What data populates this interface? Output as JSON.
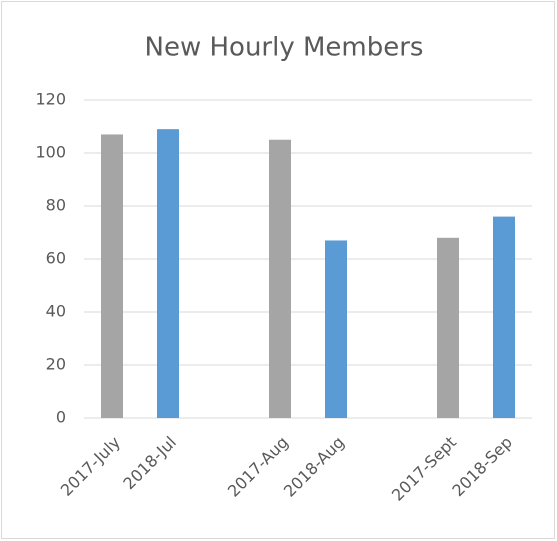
{
  "chart_data": {
    "type": "bar",
    "title": "New Hourly Members",
    "categories": [
      "2017-July",
      "2018-Jul",
      null,
      "2017-Aug",
      "2018-Aug",
      null,
      "2017-Sept",
      "2018-Sep"
    ],
    "values": [
      107,
      109,
      null,
      105,
      67,
      null,
      68,
      76
    ],
    "colors": [
      "#a5a5a5",
      "#5b9bd5",
      null,
      "#a5a5a5",
      "#5b9bd5",
      null,
      "#a5a5a5",
      "#5b9bd5"
    ],
    "ylim": [
      0,
      120
    ],
    "yticks": [
      0,
      20,
      40,
      60,
      80,
      100,
      120
    ],
    "grid": true
  }
}
